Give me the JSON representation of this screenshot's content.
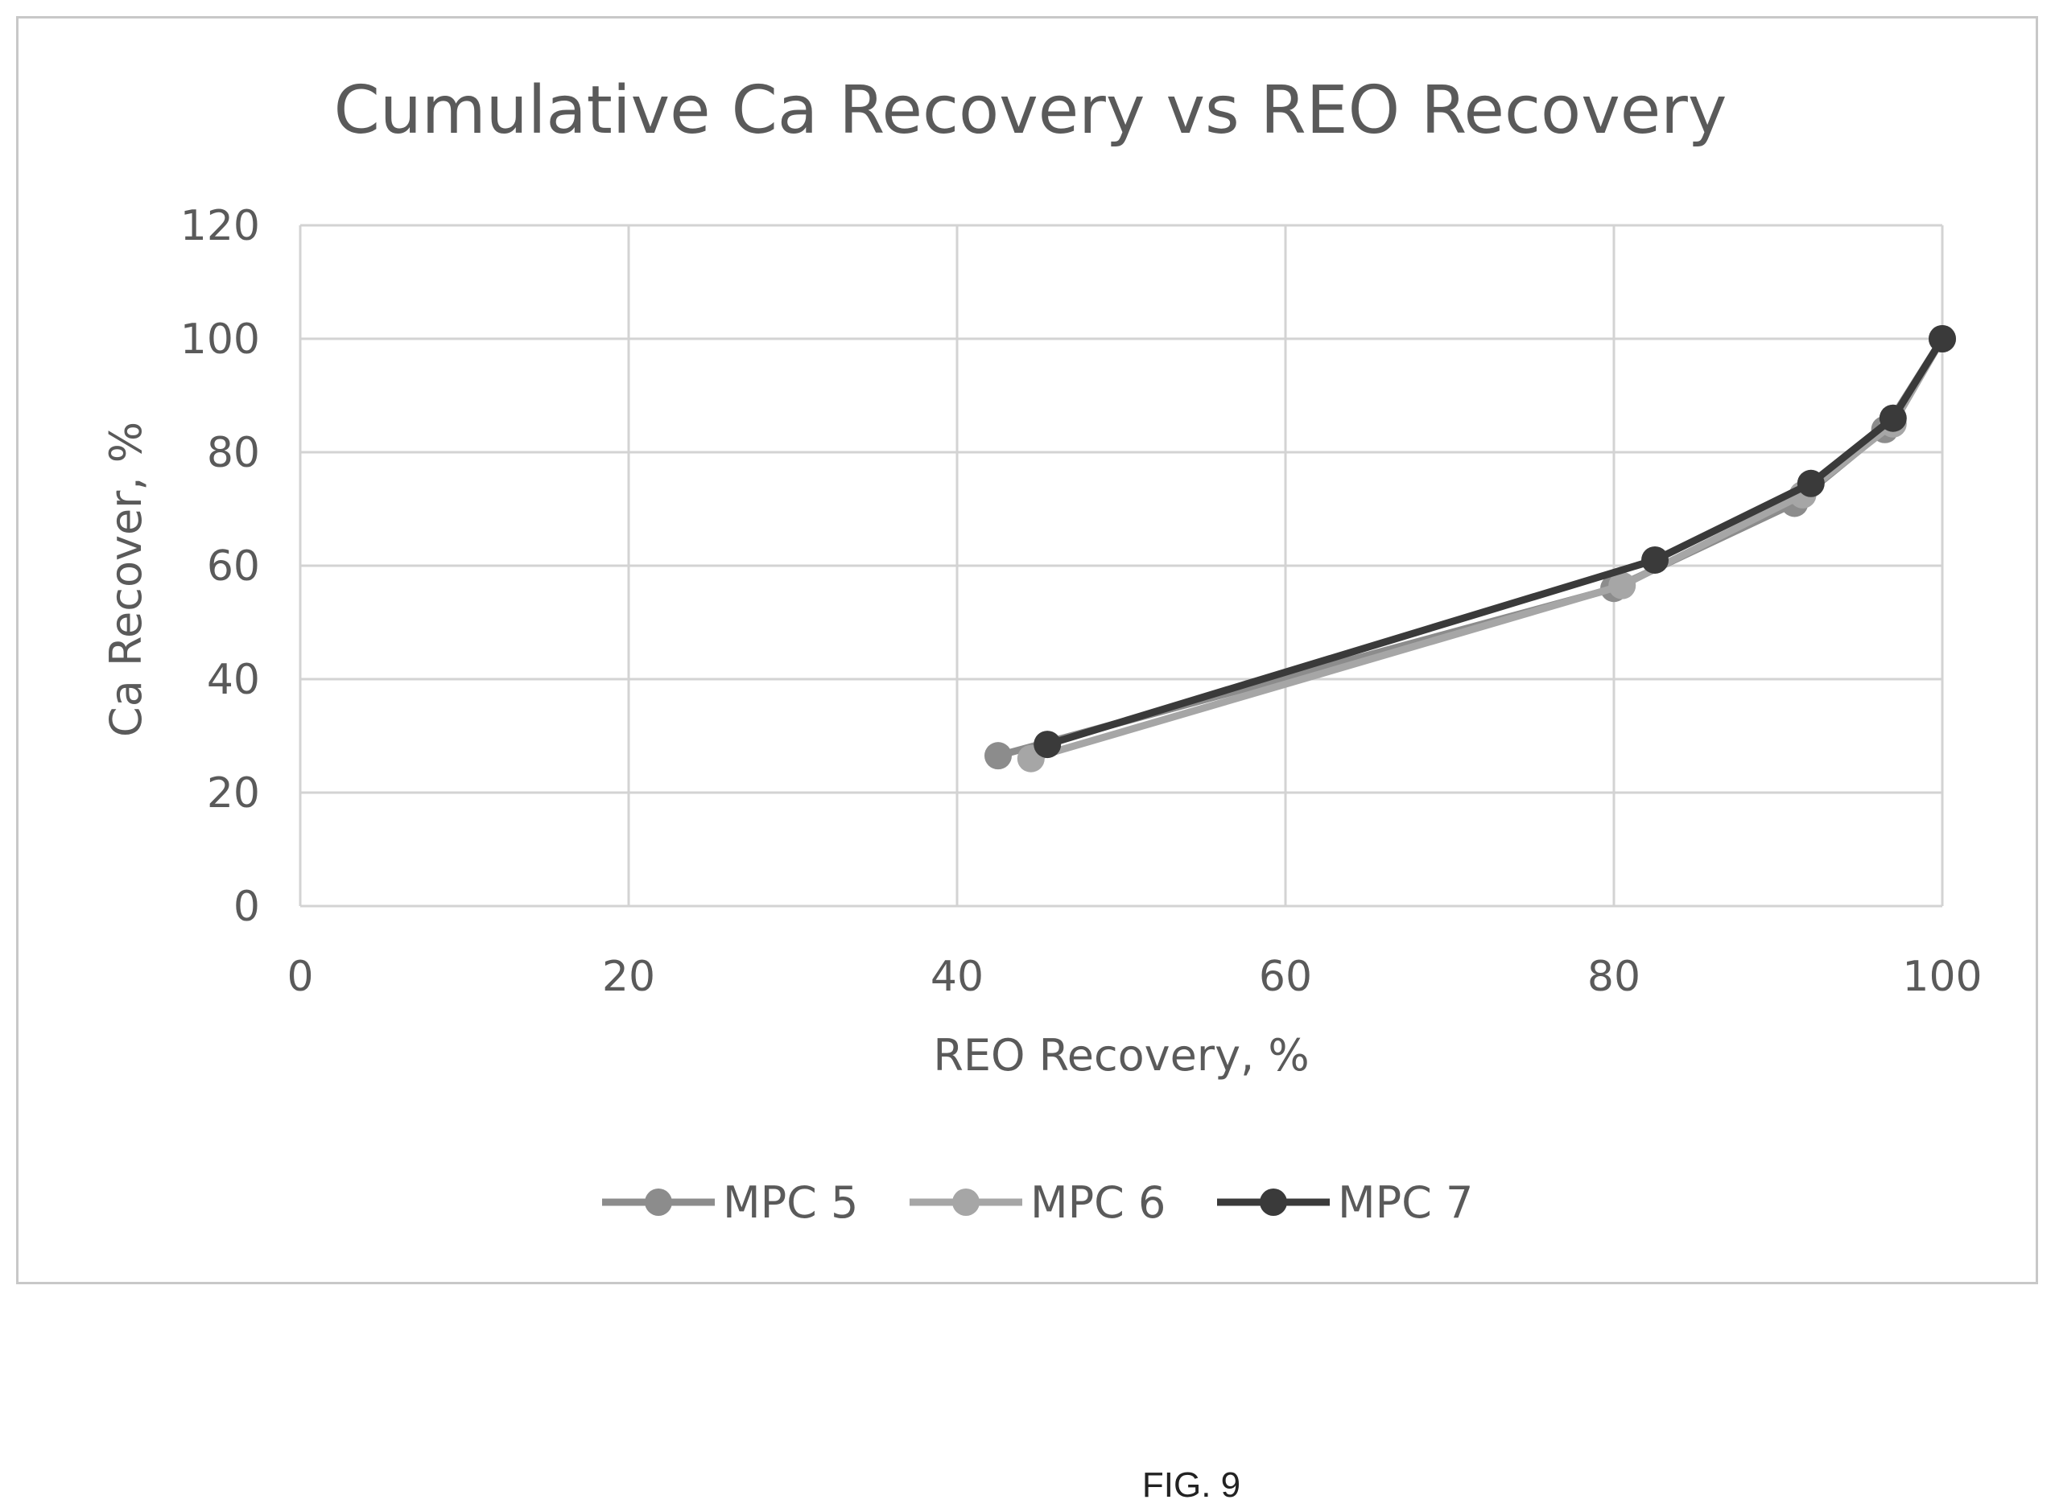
{
  "figure_label": "FIG. 9",
  "chart_data": {
    "type": "line",
    "title": "Cumulative Ca Recovery vs REO Recovery",
    "xlabel": "REO Recovery, %",
    "ylabel": "Ca Recover, %",
    "xlim": [
      0,
      100
    ],
    "ylim": [
      0,
      120
    ],
    "xticks": [
      "0",
      "20",
      "40",
      "60",
      "80",
      "100"
    ],
    "yticks": [
      "0",
      "20",
      "40",
      "60",
      "80",
      "100",
      "120"
    ],
    "xtick_values": [
      0,
      20,
      40,
      60,
      80,
      100
    ],
    "ytick_values": [
      0,
      20,
      40,
      60,
      80,
      100,
      120
    ],
    "grid": true,
    "legend_position": "bottom",
    "series": [
      {
        "name": "MPC 5",
        "color": "#8c8c8c",
        "points": [
          [
            42.5,
            26.5
          ],
          [
            80.0,
            56.0
          ],
          [
            91.0,
            71.0
          ],
          [
            96.5,
            84.0
          ],
          [
            100,
            100
          ]
        ]
      },
      {
        "name": "MPC 6",
        "color": "#a6a6a6",
        "points": [
          [
            44.5,
            26.0
          ],
          [
            80.5,
            56.5
          ],
          [
            91.5,
            72.5
          ],
          [
            97.0,
            85.0
          ],
          [
            100,
            100
          ]
        ]
      },
      {
        "name": "MPC 7",
        "color": "#3a3a3a",
        "points": [
          [
            45.5,
            28.5
          ],
          [
            82.5,
            61.0
          ],
          [
            92.0,
            74.5
          ],
          [
            97.0,
            86.0
          ],
          [
            100,
            100
          ]
        ]
      }
    ]
  }
}
